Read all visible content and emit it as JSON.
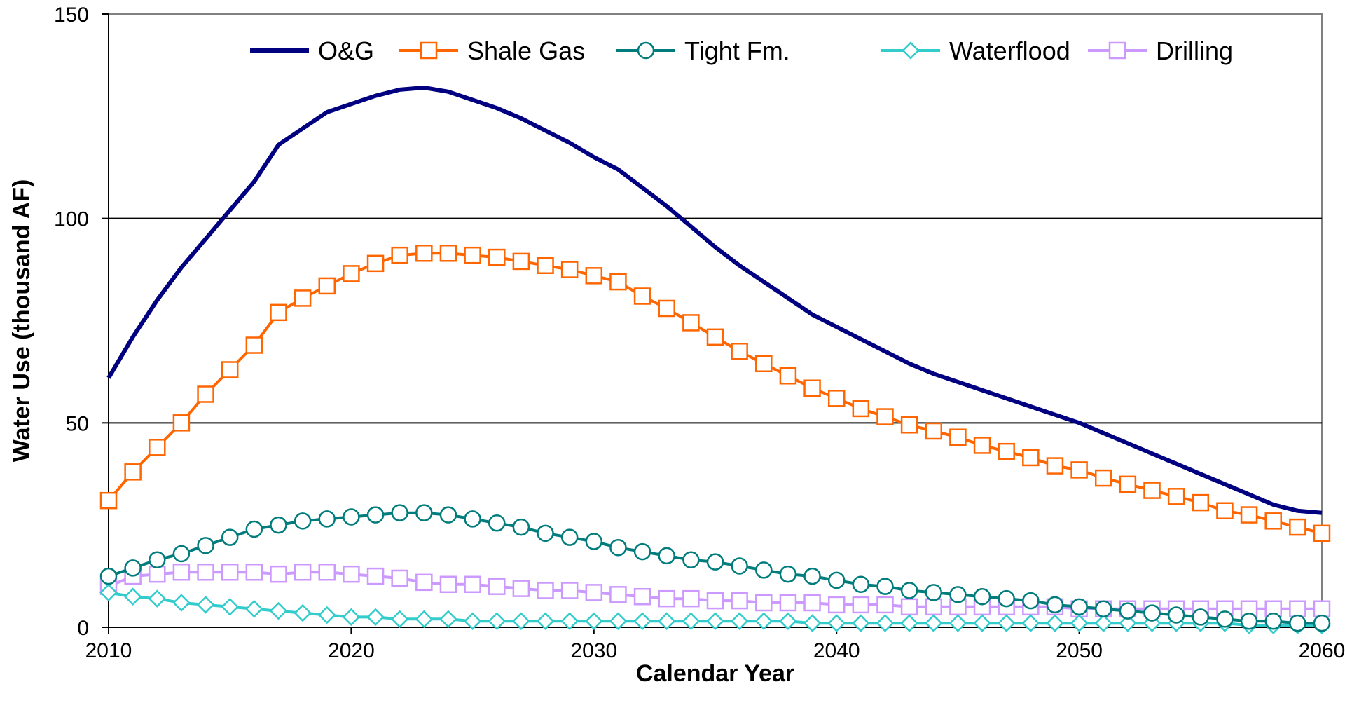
{
  "chart_data": {
    "type": "line",
    "title": "",
    "xlabel": "Calendar Year",
    "ylabel": "Water Use (thousand AF)",
    "xlim": [
      2010,
      2060
    ],
    "ylim": [
      0,
      150
    ],
    "x_ticks": [
      "2010",
      "2020",
      "2030",
      "2040",
      "2050",
      "2060"
    ],
    "y_ticks": [
      "0",
      "50",
      "100",
      "150"
    ],
    "grid": "horizontal at y-ticks",
    "legend_position": "top-center",
    "x": [
      2010,
      2011,
      2012,
      2013,
      2014,
      2015,
      2016,
      2017,
      2018,
      2019,
      2020,
      2021,
      2022,
      2023,
      2024,
      2025,
      2026,
      2027,
      2028,
      2029,
      2030,
      2031,
      2032,
      2033,
      2034,
      2035,
      2036,
      2037,
      2038,
      2039,
      2040,
      2041,
      2042,
      2043,
      2044,
      2045,
      2046,
      2047,
      2048,
      2049,
      2050,
      2051,
      2052,
      2053,
      2054,
      2055,
      2056,
      2057,
      2058,
      2059,
      2060
    ],
    "series": [
      {
        "name": "O&G",
        "color": "#000080",
        "marker": "none",
        "values": [
          61,
          71,
          80,
          88,
          95,
          102,
          109,
          118,
          122,
          126,
          128,
          130,
          131.5,
          132,
          131,
          129,
          127,
          124.5,
          121.5,
          118.5,
          115,
          112,
          107.5,
          103,
          98,
          93,
          88.5,
          84.5,
          80.5,
          76.5,
          73.5,
          70.5,
          67.5,
          64.5,
          62,
          60,
          58,
          56,
          54,
          52,
          50,
          47.5,
          45,
          42.5,
          40,
          37.5,
          35,
          32.5,
          30,
          28.5,
          28
        ]
      },
      {
        "name": "Shale Gas",
        "color": "#FF6600",
        "marker": "square",
        "values": [
          31,
          38,
          44,
          50,
          57,
          63,
          69,
          77,
          80.5,
          83.5,
          86.5,
          89,
          91,
          91.5,
          91.5,
          91,
          90.5,
          89.5,
          88.5,
          87.5,
          86,
          84.5,
          81,
          78,
          74.5,
          71,
          67.5,
          64.5,
          61.5,
          58.5,
          56,
          53.5,
          51.5,
          49.5,
          48,
          46.5,
          44.5,
          43,
          41.5,
          39.5,
          38.5,
          36.5,
          35,
          33.5,
          32,
          30.5,
          28.5,
          27.5,
          26,
          24.5,
          23
        ]
      },
      {
        "name": "Tight Fm.",
        "color": "#007C7C",
        "marker": "circle",
        "values": [
          12.5,
          14.5,
          16.5,
          18,
          20,
          22,
          24,
          25,
          26,
          26.5,
          27,
          27.5,
          28,
          28,
          27.5,
          26.5,
          25.5,
          24.5,
          23,
          22,
          21,
          19.5,
          18.5,
          17.5,
          16.5,
          16,
          15,
          14,
          13,
          12.5,
          11.5,
          10.5,
          10,
          9,
          8.5,
          8,
          7.5,
          7,
          6.5,
          5.5,
          5,
          4.5,
          4,
          3.5,
          3,
          2.5,
          2,
          1.5,
          1.5,
          1,
          1
        ]
      },
      {
        "name": "Waterflood",
        "color": "#33CCCC",
        "marker": "diamond",
        "values": [
          8.5,
          7.5,
          7,
          6,
          5.5,
          5,
          4.5,
          4,
          3.5,
          3,
          2.5,
          2.5,
          2,
          2,
          2,
          1.5,
          1.5,
          1.5,
          1.5,
          1.5,
          1.5,
          1.5,
          1.5,
          1.5,
          1.5,
          1.5,
          1.5,
          1.5,
          1.5,
          1,
          1,
          1,
          1,
          1,
          1,
          1,
          1,
          1,
          1,
          1,
          1,
          1,
          1,
          1,
          1,
          1,
          1,
          0.5,
          0.5,
          0.5,
          0.5
        ]
      },
      {
        "name": "Drilling",
        "color": "#CC99FF",
        "marker": "square",
        "values": [
          10,
          12.5,
          13,
          13.5,
          13.5,
          13.5,
          13.5,
          13,
          13.5,
          13.5,
          13,
          12.5,
          12,
          11,
          10.5,
          10.5,
          10,
          9.5,
          9,
          9,
          8.5,
          8,
          7.5,
          7,
          7,
          6.5,
          6.5,
          6,
          6,
          6,
          5.5,
          5.5,
          5.5,
          5,
          5,
          5,
          5,
          5,
          5,
          5,
          4.5,
          4.5,
          4.5,
          4.5,
          4.5,
          4.5,
          4.5,
          4.5,
          4.5,
          4.5,
          4.5
        ]
      }
    ]
  }
}
